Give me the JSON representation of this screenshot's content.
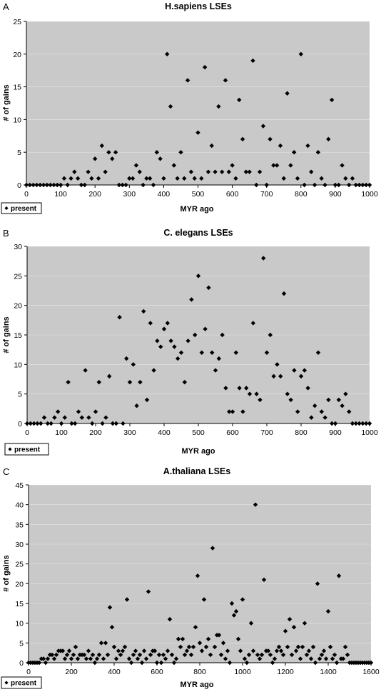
{
  "chart_data": [
    {
      "type": "scatter",
      "panel_label": "A",
      "title": "H.sapiens LSEs",
      "xlabel": "MYR ago",
      "ylabel": "# of gains",
      "xlim": [
        0,
        1000
      ],
      "ylim": [
        0,
        25
      ],
      "xticks": [
        0,
        100,
        200,
        300,
        400,
        500,
        600,
        700,
        800,
        900,
        1000
      ],
      "yticks": [
        0,
        5,
        10,
        15,
        20,
        25
      ],
      "grid": true,
      "legend": "bottom-left",
      "series": [
        {
          "name": "present",
          "marker": "diamond",
          "x": [
            0,
            10,
            20,
            30,
            40,
            50,
            60,
            70,
            80,
            90,
            100,
            110,
            120,
            130,
            140,
            150,
            160,
            170,
            180,
            190,
            200,
            210,
            220,
            230,
            240,
            250,
            260,
            270,
            280,
            290,
            300,
            310,
            320,
            330,
            340,
            350,
            360,
            370,
            380,
            390,
            400,
            410,
            420,
            430,
            440,
            450,
            460,
            470,
            480,
            490,
            500,
            510,
            520,
            530,
            540,
            550,
            560,
            570,
            580,
            590,
            600,
            610,
            620,
            630,
            640,
            650,
            660,
            670,
            680,
            690,
            700,
            710,
            720,
            730,
            740,
            750,
            760,
            770,
            780,
            790,
            800,
            810,
            820,
            830,
            840,
            850,
            860,
            870,
            880,
            890,
            900,
            910,
            920,
            930,
            940,
            950,
            960,
            970,
            980,
            990,
            1000
          ],
          "y": [
            0,
            0,
            0,
            0,
            0,
            0,
            0,
            0,
            0,
            0,
            0,
            1,
            0,
            1,
            2,
            1,
            0,
            0,
            2,
            1,
            4,
            1,
            6,
            2,
            5,
            4,
            5,
            0,
            0,
            0,
            1,
            1,
            3,
            2,
            0,
            1,
            1,
            0,
            5,
            4,
            1,
            20,
            12,
            3,
            1,
            5,
            1,
            16,
            2,
            1,
            8,
            1,
            18,
            2,
            6,
            2,
            12,
            2,
            16,
            2,
            3,
            1,
            13,
            7,
            2,
            2,
            19,
            0,
            2,
            9,
            0,
            7,
            3,
            3,
            6,
            1,
            14,
            3,
            5,
            1,
            20,
            0,
            6,
            2,
            0,
            5,
            1,
            0,
            7,
            13,
            0,
            0,
            3,
            1,
            0,
            1,
            0,
            0,
            0,
            0,
            0
          ]
        }
      ]
    },
    {
      "type": "scatter",
      "panel_label": "B",
      "title": "C. elegans LSEs",
      "xlabel": "MYR ago",
      "ylabel": "# of gains",
      "xlim": [
        0,
        1000
      ],
      "ylim": [
        0,
        30
      ],
      "xticks": [
        0,
        100,
        200,
        300,
        400,
        500,
        600,
        700,
        800,
        900,
        1000
      ],
      "yticks": [
        0,
        5,
        10,
        15,
        20,
        25,
        30
      ],
      "grid": true,
      "legend": "bottom-left",
      "series": [
        {
          "name": "present",
          "marker": "diamond",
          "x": [
            0,
            10,
            20,
            30,
            40,
            50,
            60,
            70,
            80,
            90,
            100,
            110,
            120,
            130,
            140,
            150,
            160,
            170,
            180,
            190,
            200,
            210,
            220,
            230,
            240,
            250,
            260,
            270,
            280,
            290,
            300,
            310,
            320,
            330,
            340,
            350,
            360,
            370,
            380,
            390,
            400,
            410,
            420,
            430,
            440,
            450,
            460,
            470,
            480,
            490,
            500,
            510,
            520,
            530,
            540,
            550,
            560,
            570,
            580,
            590,
            600,
            610,
            620,
            630,
            640,
            650,
            660,
            670,
            680,
            690,
            700,
            710,
            720,
            730,
            740,
            750,
            760,
            770,
            780,
            790,
            800,
            810,
            820,
            830,
            840,
            850,
            860,
            870,
            880,
            890,
            900,
            910,
            920,
            930,
            940,
            950,
            960,
            970,
            980,
            990,
            1000
          ],
          "y": [
            0,
            0,
            0,
            0,
            0,
            1,
            0,
            0,
            1,
            2,
            0,
            1,
            7,
            0,
            0,
            2,
            1,
            9,
            1,
            0,
            2,
            7,
            0,
            1,
            8,
            0,
            0,
            18,
            0,
            11,
            7,
            10,
            3,
            7,
            19,
            4,
            17,
            9,
            14,
            13,
            16,
            17,
            14,
            13,
            11,
            12,
            7,
            14,
            21,
            15,
            25,
            12,
            16,
            23,
            12,
            9,
            11,
            15,
            6,
            2,
            2,
            12,
            6,
            2,
            6,
            5,
            17,
            5,
            4,
            28,
            12,
            15,
            8,
            10,
            8,
            22,
            5,
            4,
            9,
            2,
            8,
            9,
            6,
            1,
            3,
            12,
            2,
            1,
            4,
            0,
            0,
            4,
            3,
            5,
            2,
            0,
            0,
            0,
            0,
            0,
            0
          ]
        }
      ]
    },
    {
      "type": "scatter",
      "panel_label": "C",
      "title": "A.thaliana LSEs",
      "xlabel": "MYR ago",
      "ylabel": "# of gains",
      "xlim": [
        0,
        1600
      ],
      "ylim": [
        0,
        45
      ],
      "xticks": [
        0,
        200,
        400,
        600,
        800,
        1000,
        1200,
        1400,
        1600
      ],
      "yticks": [
        0,
        5,
        10,
        15,
        20,
        25,
        30,
        35,
        40,
        45
      ],
      "grid": true,
      "legend": "bottom-left",
      "series": [
        {
          "name": "present",
          "marker": "diamond",
          "x": [
            0,
            10,
            20,
            30,
            40,
            50,
            60,
            70,
            80,
            90,
            100,
            110,
            120,
            130,
            140,
            150,
            160,
            170,
            180,
            190,
            200,
            210,
            220,
            230,
            240,
            250,
            260,
            270,
            280,
            290,
            300,
            310,
            320,
            330,
            340,
            350,
            360,
            370,
            380,
            390,
            400,
            410,
            420,
            430,
            440,
            450,
            460,
            470,
            480,
            490,
            500,
            510,
            520,
            530,
            540,
            550,
            560,
            570,
            580,
            590,
            600,
            610,
            620,
            630,
            640,
            650,
            660,
            670,
            680,
            690,
            700,
            710,
            720,
            730,
            740,
            750,
            760,
            770,
            780,
            790,
            800,
            810,
            820,
            830,
            840,
            850,
            860,
            870,
            880,
            890,
            900,
            910,
            920,
            930,
            940,
            950,
            960,
            970,
            980,
            990,
            1000,
            1010,
            1020,
            1030,
            1040,
            1050,
            1060,
            1070,
            1080,
            1090,
            1100,
            1110,
            1120,
            1130,
            1140,
            1150,
            1160,
            1170,
            1180,
            1190,
            1200,
            1210,
            1220,
            1230,
            1240,
            1250,
            1260,
            1270,
            1280,
            1290,
            1300,
            1310,
            1320,
            1330,
            1340,
            1350,
            1360,
            1370,
            1380,
            1390,
            1400,
            1410,
            1420,
            1430,
            1440,
            1450,
            1460,
            1470,
            1480,
            1490,
            1500,
            1510,
            1520,
            1530,
            1540,
            1550,
            1560,
            1570,
            1580,
            1590,
            1600
          ],
          "y": [
            0,
            0,
            0,
            0,
            0,
            0,
            1,
            1,
            0,
            1,
            2,
            2,
            1,
            2,
            3,
            3,
            3,
            1,
            2,
            3,
            1,
            2,
            4,
            1,
            2,
            2,
            2,
            1,
            3,
            1,
            2,
            0,
            1,
            2,
            5,
            1,
            5,
            2,
            14,
            9,
            4,
            1,
            3,
            2,
            3,
            4,
            16,
            1,
            0,
            2,
            3,
            1,
            2,
            0,
            3,
            1,
            18,
            2,
            3,
            3,
            0,
            2,
            0,
            2,
            1,
            3,
            11,
            2,
            0,
            1,
            6,
            4,
            6,
            2,
            3,
            4,
            2,
            4,
            9,
            22,
            5,
            3,
            16,
            4,
            6,
            2,
            29,
            4,
            7,
            7,
            2,
            5,
            1,
            3,
            0,
            15,
            12,
            13,
            6,
            3,
            16,
            1,
            0,
            2,
            10,
            3,
            40,
            2,
            1,
            2,
            21,
            3,
            3,
            2,
            0,
            1,
            3,
            4,
            3,
            2,
            8,
            4,
            11,
            2,
            9,
            3,
            4,
            1,
            4,
            10,
            2,
            3,
            1,
            4,
            0,
            20,
            1,
            2,
            3,
            1,
            13,
            4,
            1,
            2,
            0,
            22,
            1,
            1,
            4,
            2,
            0,
            0,
            0,
            0,
            0,
            0,
            0,
            0,
            0,
            0,
            0
          ]
        }
      ]
    }
  ]
}
